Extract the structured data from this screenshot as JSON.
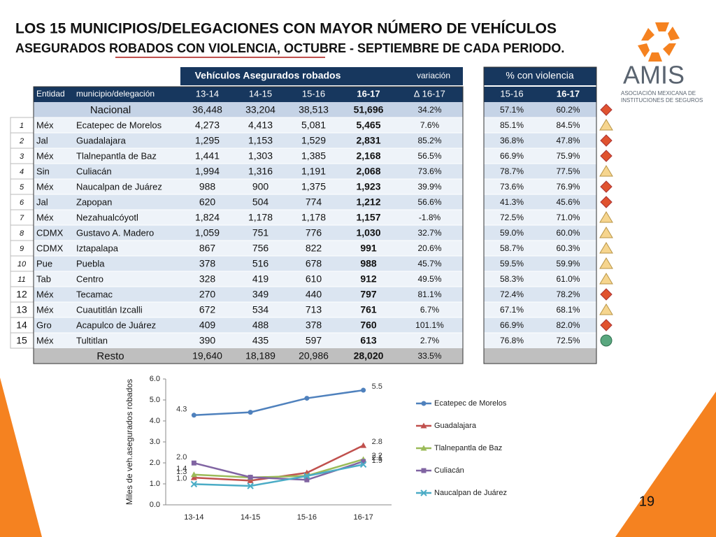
{
  "header": {
    "title_line1": "LOS 15 MUNICIPIOS/DELEGACIONES CON MAYOR NÚMERO DE VEHÍCULOS",
    "title_line2": "ASEGURADOS ROBADOS CON VIOLENCIA, OCTUBRE - SEPTIEMBRE DE CADA PERIODO."
  },
  "logo": {
    "name": "AMIS",
    "subtitle_line1": "ASOCIACIÓN MEXICANA DE",
    "subtitle_line2": "INSTITUCIONES DE SEGUROS"
  },
  "table": {
    "group_headers": [
      "Vehículos Asegurados robados",
      "variación",
      "% con violencia"
    ],
    "columns": [
      "Entidad",
      "municipio/delegación",
      "13-14",
      "14-15",
      "15-16",
      "16-17",
      "∆ 16-17",
      "15-16",
      "16-17"
    ],
    "national": {
      "label": "Nacional",
      "cells": [
        "36,448",
        "33,204",
        "38,513",
        "51,696",
        "34.2%",
        "57.1%",
        "60.2%"
      ],
      "indicator": "diamond"
    },
    "rows": [
      {
        "rank": "1",
        "entity": "Méx",
        "municipality": "Ecatepec de Morelos",
        "cells": [
          "4,273",
          "4,413",
          "5,081",
          "5,465",
          "7.6%",
          "85.1%",
          "84.5%"
        ],
        "indicator": "triangle"
      },
      {
        "rank": "2",
        "entity": "Jal",
        "municipality": "Guadalajara",
        "cells": [
          "1,295",
          "1,153",
          "1,529",
          "2,831",
          "85.2%",
          "36.8%",
          "47.8%"
        ],
        "indicator": "diamond"
      },
      {
        "rank": "3",
        "entity": "Méx",
        "municipality": "Tlalnepantla de Baz",
        "cells": [
          "1,441",
          "1,303",
          "1,385",
          "2,168",
          "56.5%",
          "66.9%",
          "75.9%"
        ],
        "indicator": "diamond"
      },
      {
        "rank": "4",
        "entity": "Sin",
        "municipality": "Culiacán",
        "cells": [
          "1,994",
          "1,316",
          "1,191",
          "2,068",
          "73.6%",
          "78.7%",
          "77.5%"
        ],
        "indicator": "triangle"
      },
      {
        "rank": "5",
        "entity": "Méx",
        "municipality": "Naucalpan de Juárez",
        "cells": [
          "988",
          "900",
          "1,375",
          "1,923",
          "39.9%",
          "73.6%",
          "76.9%"
        ],
        "indicator": "diamond"
      },
      {
        "rank": "6",
        "entity": "Jal",
        "municipality": "Zapopan",
        "cells": [
          "620",
          "504",
          "774",
          "1,212",
          "56.6%",
          "41.3%",
          "45.6%"
        ],
        "indicator": "diamond"
      },
      {
        "rank": "7",
        "entity": "Méx",
        "municipality": "Nezahualcóyotl",
        "cells": [
          "1,824",
          "1,178",
          "1,178",
          "1,157",
          "-1.8%",
          "72.5%",
          "71.0%"
        ],
        "indicator": "triangle"
      },
      {
        "rank": "8",
        "entity": "CDMX",
        "municipality": "Gustavo A. Madero",
        "cells": [
          "1,059",
          "751",
          "776",
          "1,030",
          "32.7%",
          "59.0%",
          "60.0%"
        ],
        "indicator": "triangle"
      },
      {
        "rank": "9",
        "entity": "CDMX",
        "municipality": "Iztapalapa",
        "cells": [
          "867",
          "756",
          "822",
          "991",
          "20.6%",
          "58.7%",
          "60.3%"
        ],
        "indicator": "triangle"
      },
      {
        "rank": "10",
        "entity": "Pue",
        "municipality": "Puebla",
        "cells": [
          "378",
          "516",
          "678",
          "988",
          "45.7%",
          "59.5%",
          "59.9%"
        ],
        "indicator": "triangle"
      },
      {
        "rank": "11",
        "entity": "Tab",
        "municipality": "Centro",
        "cells": [
          "328",
          "419",
          "610",
          "912",
          "49.5%",
          "58.3%",
          "61.0%"
        ],
        "indicator": "triangle"
      },
      {
        "rank": "12",
        "entity": "Méx",
        "municipality": "Tecamac",
        "cells": [
          "270",
          "349",
          "440",
          "797",
          "81.1%",
          "72.4%",
          "78.2%"
        ],
        "indicator": "diamond"
      },
      {
        "rank": "13",
        "entity": "Méx",
        "municipality": "Cuautitlán Izcalli",
        "cells": [
          "672",
          "534",
          "713",
          "761",
          "6.7%",
          "67.1%",
          "68.1%"
        ],
        "indicator": "triangle"
      },
      {
        "rank": "14",
        "entity": "Gro",
        "municipality": "Acapulco de Juárez",
        "cells": [
          "409",
          "488",
          "378",
          "760",
          "101.1%",
          "66.9%",
          "82.0%"
        ],
        "indicator": "diamond"
      },
      {
        "rank": "15",
        "entity": "Méx",
        "municipality": "Tultitlan",
        "cells": [
          "390",
          "435",
          "597",
          "613",
          "2.7%",
          "76.8%",
          "72.5%"
        ],
        "indicator": "circle"
      }
    ],
    "rest": {
      "label": "Resto",
      "cells": [
        "19,640",
        "18,189",
        "20,986",
        "28,020",
        "33.5%"
      ]
    }
  },
  "page_number": "19",
  "chart_data": {
    "type": "line",
    "y_label": "Miles de veh.asegurados robados",
    "categories": [
      "13-14",
      "14-15",
      "15-16",
      "16-17"
    ],
    "ylim": [
      0,
      6
    ],
    "yticks": [
      {
        "value": 0,
        "label": "0.0"
      },
      {
        "value": 1,
        "label": "1.0"
      },
      {
        "value": 2,
        "label": "2.0"
      },
      {
        "value": 3,
        "label": "3.0"
      },
      {
        "value": 4,
        "label": "4.0"
      },
      {
        "value": 5,
        "label": "5.0"
      },
      {
        "value": 6,
        "label": "6.0"
      }
    ],
    "series": [
      {
        "name": "Ecatepec de Morelos",
        "color": "#4f81bd",
        "marker": "circle",
        "values": [
          4.273,
          4.413,
          5.081,
          5.465
        ],
        "value_labels": [
          "4.3",
          null,
          null,
          "5.5"
        ]
      },
      {
        "name": "Guadalajara",
        "color": "#c0504d",
        "marker": "triangle",
        "values": [
          1.295,
          1.153,
          1.529,
          2.831
        ],
        "value_labels": [
          "1.3",
          null,
          null,
          "2.8"
        ]
      },
      {
        "name": "Tlalnepantla de Baz",
        "color": "#9bbb59",
        "marker": "triangle",
        "values": [
          1.441,
          1.303,
          1.385,
          2.168
        ],
        "value_labels": [
          "1.4",
          null,
          null,
          "2.2"
        ]
      },
      {
        "name": "Culiacán",
        "color": "#8064a2",
        "marker": "square",
        "values": [
          1.994,
          1.316,
          1.191,
          2.068
        ],
        "value_labels": [
          "2.0",
          null,
          null,
          "2.1"
        ]
      },
      {
        "name": "Naucalpan de Juárez",
        "color": "#4bacc6",
        "marker": "x",
        "values": [
          0.988,
          0.9,
          1.375,
          1.923
        ],
        "value_labels": [
          "1.0",
          null,
          null,
          "1.9"
        ]
      }
    ]
  }
}
